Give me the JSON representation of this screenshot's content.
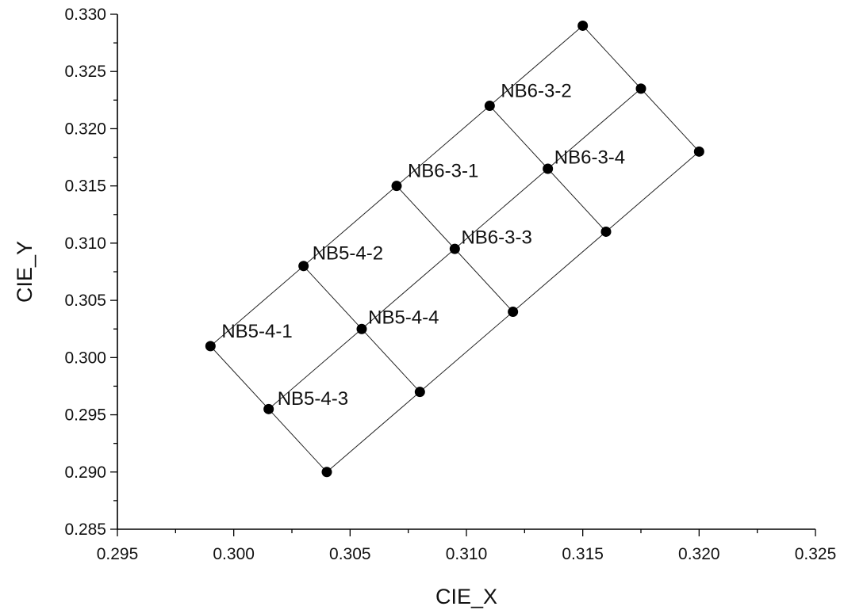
{
  "chart_data": {
    "type": "scatter",
    "title": "",
    "xlabel": "CIE_X",
    "ylabel": "CIE_Y",
    "xlim": [
      0.295,
      0.325
    ],
    "ylim": [
      0.285,
      0.33
    ],
    "x_ticks": [
      "0.295",
      "0.300",
      "0.305",
      "0.310",
      "0.315",
      "0.320",
      "0.325"
    ],
    "y_ticks": [
      "0.285",
      "0.290",
      "0.295",
      "0.300",
      "0.305",
      "0.310",
      "0.315",
      "0.320",
      "0.325",
      "0.330"
    ],
    "grid": false,
    "points": [
      {
        "x": 0.299,
        "y": 0.301
      },
      {
        "x": 0.3015,
        "y": 0.2955
      },
      {
        "x": 0.304,
        "y": 0.29
      },
      {
        "x": 0.303,
        "y": 0.308
      },
      {
        "x": 0.3055,
        "y": 0.3025
      },
      {
        "x": 0.308,
        "y": 0.297
      },
      {
        "x": 0.307,
        "y": 0.315
      },
      {
        "x": 0.3095,
        "y": 0.3095
      },
      {
        "x": 0.312,
        "y": 0.304
      },
      {
        "x": 0.311,
        "y": 0.322
      },
      {
        "x": 0.3135,
        "y": 0.3165
      },
      {
        "x": 0.316,
        "y": 0.311
      },
      {
        "x": 0.315,
        "y": 0.329
      },
      {
        "x": 0.3175,
        "y": 0.3235
      },
      {
        "x": 0.32,
        "y": 0.318
      }
    ],
    "regions": [
      {
        "label": "NB5-4-1",
        "x": 0.301,
        "y": 0.3022
      },
      {
        "label": "NB5-4-3",
        "x": 0.3034,
        "y": 0.2963
      },
      {
        "label": "NB5-4-2",
        "x": 0.3049,
        "y": 0.309
      },
      {
        "label": "NB5-4-4",
        "x": 0.3073,
        "y": 0.3034
      },
      {
        "label": "NB6-3-1",
        "x": 0.309,
        "y": 0.3162
      },
      {
        "label": "NB6-3-3",
        "x": 0.3113,
        "y": 0.3104
      },
      {
        "label": "NB6-3-2",
        "x": 0.313,
        "y": 0.3232
      },
      {
        "label": "NB6-3-4",
        "x": 0.3153,
        "y": 0.3174
      }
    ]
  }
}
